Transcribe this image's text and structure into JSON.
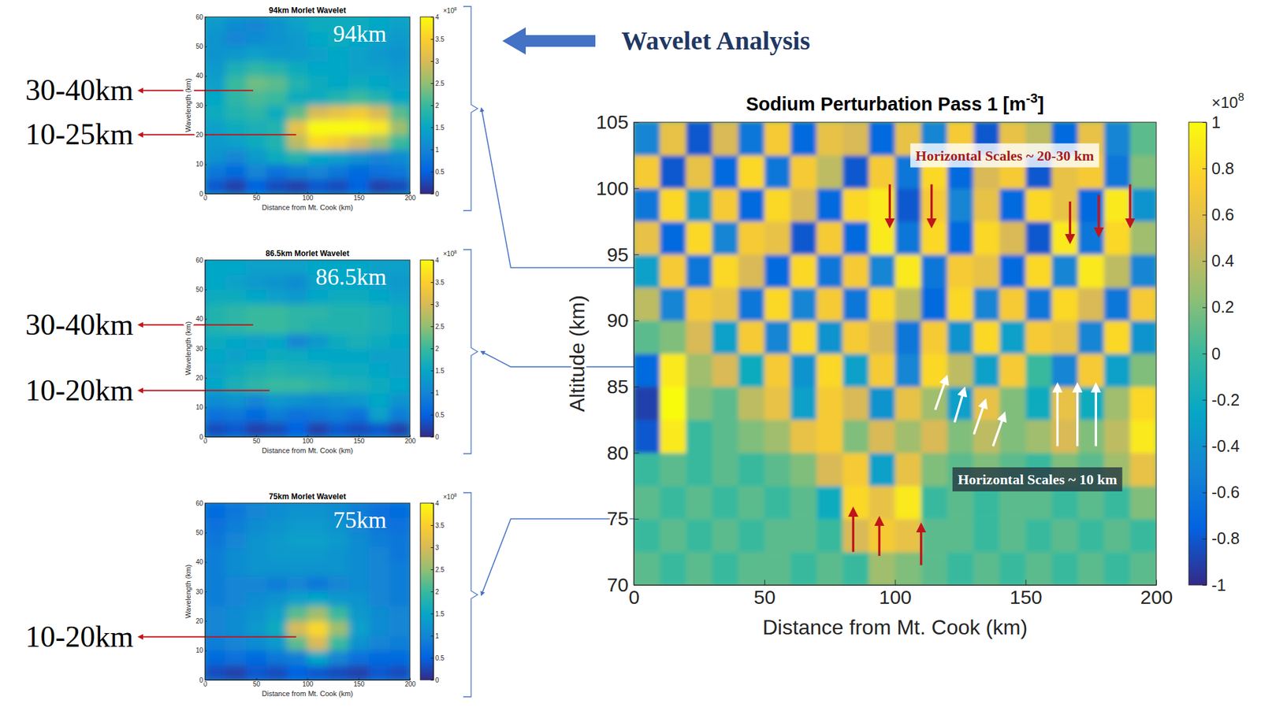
{
  "figure": {
    "heading": "Wavelet Analysis"
  },
  "chart_data": [
    {
      "type": "heatmap",
      "title": "94km Morlet Wavelet",
      "panel_label": "94km",
      "altitude": 94,
      "xlabel": "Distance from Mt. Cook (km)",
      "ylabel": "Wavelength (km)",
      "xlim": [
        0,
        200
      ],
      "ylim": [
        0,
        60
      ],
      "xticks": [
        0,
        50,
        100,
        150,
        200
      ],
      "yticks": [
        0,
        10,
        20,
        30,
        40,
        50,
        60
      ],
      "x": [
        10,
        30,
        50,
        70,
        90,
        110,
        130,
        150,
        170,
        190
      ],
      "y": [
        2.5,
        7.5,
        12.5,
        17.5,
        22.5,
        27.5,
        32.5,
        37.5,
        42.5,
        47.5,
        52.5,
        57.5
      ],
      "values": [
        [
          0.4,
          0.2,
          0.5,
          0.3,
          0.2,
          0.4,
          0.3,
          0.5,
          0.2,
          0.3
        ],
        [
          0.8,
          0.6,
          1.0,
          0.7,
          0.9,
          1.0,
          0.8,
          0.6,
          0.7,
          0.8
        ],
        [
          1.2,
          1.0,
          1.3,
          1.6,
          1.8,
          1.5,
          1.4,
          1.2,
          1.0,
          1.1
        ],
        [
          1.3,
          1.4,
          1.6,
          1.8,
          2.8,
          3.6,
          3.4,
          3.0,
          2.6,
          2.0
        ],
        [
          1.4,
          1.6,
          1.7,
          1.8,
          3.2,
          4.0,
          4.0,
          4.0,
          3.8,
          2.6
        ],
        [
          1.6,
          1.8,
          1.9,
          1.6,
          2.2,
          3.0,
          3.2,
          3.4,
          3.0,
          2.2
        ],
        [
          1.5,
          1.9,
          2.1,
          2.0,
          1.6,
          1.6,
          1.8,
          2.0,
          1.8,
          1.5
        ],
        [
          1.4,
          2.0,
          2.3,
          2.2,
          1.8,
          1.6,
          1.5,
          1.6,
          1.5,
          1.4
        ],
        [
          1.3,
          1.7,
          1.9,
          1.8,
          1.6,
          1.5,
          1.5,
          1.4,
          1.4,
          1.3
        ],
        [
          1.2,
          1.3,
          1.4,
          1.3,
          1.3,
          1.4,
          1.5,
          1.4,
          1.3,
          1.2
        ],
        [
          1.2,
          1.0,
          1.1,
          1.2,
          1.3,
          1.5,
          1.6,
          1.5,
          1.4,
          1.3
        ],
        [
          1.3,
          1.1,
          1.0,
          1.2,
          1.4,
          1.6,
          1.6,
          1.6,
          1.5,
          1.4
        ]
      ],
      "colorbar": {
        "clim": [
          0,
          4
        ],
        "ticks": [
          0,
          0.5,
          1,
          1.5,
          2,
          2.5,
          3,
          3.5,
          4
        ],
        "label": "×10",
        "exponent": 8
      },
      "annotations": [
        {
          "text": "30-40km",
          "x": 47,
          "y": 35,
          "color": "#c0151b"
        },
        {
          "text": "10-25km",
          "x": 89,
          "y": 20,
          "color": "#c0151b"
        }
      ]
    },
    {
      "type": "heatmap",
      "title": "86.5km Morlet Wavelet",
      "panel_label": "86.5km",
      "altitude": 86.5,
      "xlabel": "Distance from Mt. Cook (km)",
      "ylabel": "Wavelength (km)",
      "xlim": [
        0,
        200
      ],
      "ylim": [
        0,
        60
      ],
      "xticks": [
        0,
        50,
        100,
        150,
        200
      ],
      "yticks": [
        0,
        10,
        20,
        30,
        40,
        50,
        60
      ],
      "x": [
        10,
        30,
        50,
        70,
        90,
        110,
        130,
        150,
        170,
        190
      ],
      "y": [
        2.5,
        7.5,
        12.5,
        17.5,
        22.5,
        27.5,
        32.5,
        37.5,
        42.5,
        47.5,
        52.5,
        57.5
      ],
      "values": [
        [
          0.3,
          0.4,
          0.2,
          0.3,
          0.5,
          0.2,
          0.4,
          0.3,
          0.4,
          0.2
        ],
        [
          0.7,
          0.8,
          0.6,
          0.9,
          0.7,
          0.8,
          0.9,
          0.7,
          1.4,
          0.9
        ],
        [
          1.1,
          1.2,
          1.0,
          1.3,
          1.2,
          1.1,
          1.2,
          1.3,
          1.5,
          1.2
        ],
        [
          1.5,
          1.7,
          1.9,
          2.0,
          2.0,
          1.9,
          1.8,
          1.7,
          1.6,
          1.5
        ],
        [
          1.4,
          1.6,
          1.7,
          1.8,
          1.7,
          1.7,
          1.6,
          1.6,
          1.5,
          1.4
        ],
        [
          1.5,
          1.4,
          1.5,
          1.6,
          1.6,
          1.5,
          1.5,
          1.5,
          1.4,
          1.4
        ],
        [
          1.6,
          1.5,
          1.4,
          1.5,
          1.0,
          1.3,
          1.6,
          1.7,
          1.6,
          1.5
        ],
        [
          1.8,
          1.9,
          2.0,
          2.0,
          1.9,
          1.8,
          1.8,
          1.8,
          1.7,
          1.6
        ],
        [
          1.8,
          1.9,
          2.0,
          2.0,
          1.9,
          1.9,
          1.8,
          1.8,
          1.7,
          1.6
        ],
        [
          1.6,
          1.6,
          1.5,
          1.4,
          1.3,
          1.5,
          1.6,
          1.6,
          1.5,
          1.4
        ],
        [
          1.5,
          1.4,
          1.3,
          1.2,
          1.1,
          1.4,
          1.5,
          1.5,
          1.4,
          1.3
        ],
        [
          1.5,
          1.5,
          1.4,
          1.4,
          1.4,
          1.5,
          1.5,
          1.5,
          1.4,
          1.4
        ]
      ],
      "colorbar": {
        "clim": [
          0,
          4
        ],
        "ticks": [
          0,
          0.5,
          1,
          1.5,
          2,
          2.5,
          3,
          3.5,
          4
        ],
        "label": "×10",
        "exponent": 8
      },
      "annotations": [
        {
          "text": "30-40km",
          "x": 47,
          "y": 38,
          "color": "#c0151b"
        },
        {
          "text": "10-20km",
          "x": 63,
          "y": 15.7,
          "color": "#c0151b"
        }
      ]
    },
    {
      "type": "heatmap",
      "title": "75km Morlet Wavelet",
      "panel_label": "75km",
      "altitude": 75,
      "xlabel": "Distance from Mt. Cook (km)",
      "ylabel": "Wavelength (km)",
      "xlim": [
        0,
        200
      ],
      "ylim": [
        0,
        60
      ],
      "xticks": [
        0,
        50,
        100,
        150,
        200
      ],
      "yticks": [
        0,
        10,
        20,
        30,
        40,
        50,
        60
      ],
      "x": [
        10,
        30,
        50,
        70,
        90,
        110,
        130,
        150,
        170,
        190
      ],
      "y": [
        2.5,
        7.5,
        12.5,
        17.5,
        22.5,
        27.5,
        32.5,
        37.5,
        42.5,
        47.5,
        52.5,
        57.5
      ],
      "values": [
        [
          0.3,
          0.2,
          0.4,
          0.3,
          0.5,
          0.4,
          0.3,
          0.2,
          0.4,
          0.3
        ],
        [
          0.6,
          0.7,
          0.6,
          0.8,
          0.9,
          1.5,
          1.0,
          0.7,
          0.6,
          0.6
        ],
        [
          0.9,
          1.0,
          1.1,
          1.3,
          2.2,
          3.0,
          2.0,
          1.2,
          1.0,
          0.9
        ],
        [
          1.0,
          1.1,
          1.3,
          1.6,
          3.0,
          3.6,
          2.6,
          1.4,
          1.1,
          1.0
        ],
        [
          1.0,
          1.1,
          1.2,
          1.4,
          2.2,
          2.6,
          2.0,
          1.3,
          1.1,
          1.0
        ],
        [
          0.9,
          1.0,
          1.1,
          1.2,
          1.4,
          1.5,
          1.3,
          1.2,
          1.0,
          0.9
        ],
        [
          0.9,
          1.0,
          1.0,
          0.9,
          1.0,
          0.8,
          1.0,
          1.1,
          1.0,
          0.9
        ],
        [
          0.9,
          1.1,
          1.2,
          1.2,
          1.2,
          1.2,
          1.2,
          1.1,
          1.0,
          0.9
        ],
        [
          0.9,
          1.1,
          1.2,
          1.3,
          1.3,
          1.3,
          1.2,
          1.1,
          1.0,
          0.8
        ],
        [
          0.8,
          1.0,
          1.2,
          1.3,
          1.4,
          1.4,
          1.3,
          1.1,
          0.9,
          0.8
        ],
        [
          0.7,
          0.9,
          1.1,
          1.2,
          1.3,
          1.3,
          1.2,
          1.0,
          0.8,
          0.7
        ],
        [
          0.6,
          0.8,
          1.0,
          1.1,
          1.2,
          1.2,
          1.1,
          0.9,
          0.7,
          0.6
        ]
      ],
      "colorbar": {
        "clim": [
          0,
          4
        ],
        "ticks": [
          0,
          0.5,
          1,
          1.5,
          2,
          2.5,
          3,
          3.5,
          4
        ],
        "label": "×10",
        "exponent": 8
      },
      "annotations": [
        {
          "text": "10-20km",
          "x": 89,
          "y": 14.6,
          "color": "#c0151b"
        }
      ]
    },
    {
      "type": "heatmap",
      "title": {
        "text": "Sodium Perturbation Pass 1 [m",
        "superscript": "-3",
        "suffix": "]"
      },
      "xlabel": "Distance from Mt. Cook (km)",
      "ylabel": "Altitude (km)",
      "xlim": [
        0,
        200
      ],
      "ylim": [
        70,
        105
      ],
      "xticks": [
        0,
        50,
        100,
        150,
        200
      ],
      "yticks": [
        70,
        75,
        80,
        85,
        90,
        95,
        100,
        105
      ],
      "x": [
        5,
        15,
        25,
        35,
        45,
        55,
        65,
        75,
        85,
        95,
        105,
        115,
        125,
        135,
        145,
        155,
        165,
        175,
        185,
        195
      ],
      "y": [
        71.25,
        73.75,
        76.25,
        78.75,
        81.25,
        83.75,
        86.25,
        88.75,
        91.25,
        93.75,
        96.25,
        98.75,
        101.25,
        103.75
      ],
      "values": [
        [
          0.1,
          0,
          0.1,
          0,
          0.1,
          0.1,
          0,
          0.1,
          0,
          0.3,
          0.2,
          0.1,
          0,
          0.1,
          0,
          0.1,
          0,
          0.1,
          0,
          0.1
        ],
        [
          0,
          0.1,
          0,
          0.1,
          0,
          0.1,
          0.1,
          0,
          0.5,
          0.7,
          0.6,
          0.1,
          0.1,
          0,
          0.1,
          0,
          0.1,
          0,
          0.1,
          0
        ],
        [
          0.1,
          0,
          0.1,
          0,
          0.1,
          0,
          0.1,
          -0.2,
          0.8,
          0.6,
          0.9,
          0,
          0.1,
          0,
          0.1,
          0.1,
          0,
          0.1,
          0,
          0.2
        ],
        [
          0,
          0.1,
          0,
          0.1,
          0,
          0.1,
          0.2,
          0.5,
          0.7,
          -0.3,
          0.6,
          0.2,
          0.1,
          0.2,
          0.1,
          0,
          0.2,
          0.1,
          0.3,
          0.6
        ],
        [
          -0.8,
          0.9,
          0,
          0.1,
          0.2,
          0.3,
          0.6,
          0.7,
          0.2,
          0.5,
          0.3,
          0.5,
          0.2,
          0.4,
          0.2,
          0.3,
          0.5,
          0.2,
          0.4,
          0.9
        ],
        [
          -0.9,
          1,
          0.2,
          0.1,
          0.4,
          0.6,
          -0.3,
          0.7,
          0.5,
          -0.4,
          0.6,
          0.3,
          -0.3,
          0.6,
          0.2,
          -0.2,
          0.6,
          -0.2,
          0.3,
          0.8
        ],
        [
          -0.7,
          0.9,
          0.3,
          0.5,
          -0.2,
          0.7,
          -0.4,
          0.8,
          -0.3,
          0.7,
          -0.5,
          0.8,
          0.4,
          -0.3,
          0.7,
          0,
          -0.5,
          0.7,
          -0.3,
          0.2
        ],
        [
          0.1,
          0.2,
          0.5,
          -0.3,
          0.7,
          -0.5,
          0.8,
          -0.4,
          0.7,
          0.5,
          -0.6,
          0.7,
          -0.4,
          0.8,
          -0.3,
          0.7,
          0.6,
          -0.5,
          0.8,
          -0.4
        ],
        [
          0.4,
          -0.5,
          0.7,
          0.6,
          -0.6,
          0.8,
          -0.5,
          0.7,
          -0.6,
          0.8,
          0.4,
          -0.7,
          0.8,
          -0.5,
          0.7,
          -0.6,
          0.8,
          0.5,
          -0.6,
          0.7
        ],
        [
          -0.3,
          0.7,
          -0.6,
          0.8,
          0.5,
          -0.7,
          0.8,
          -0.6,
          0.7,
          -0.5,
          0.9,
          -0.6,
          0.7,
          0.6,
          -0.7,
          0.8,
          -0.5,
          0.9,
          0.4,
          -0.5
        ],
        [
          0.6,
          -0.7,
          0.8,
          -0.5,
          0.7,
          0.6,
          -0.8,
          0.7,
          -0.7,
          0.9,
          -0.6,
          0.8,
          -0.7,
          0.8,
          0.5,
          -0.8,
          0.9,
          -0.6,
          0.8,
          0.3
        ],
        [
          -0.6,
          0.8,
          -0.4,
          0.7,
          -0.7,
          0.8,
          0.5,
          -0.7,
          0.8,
          0.9,
          -0.8,
          0.7,
          -0.5,
          0.6,
          -0.7,
          0.8,
          0.6,
          -0.7,
          0.9,
          -0.4
        ],
        [
          0.7,
          -0.8,
          0.6,
          -0.7,
          0.8,
          -0.6,
          0.7,
          0.4,
          -0.8,
          0.7,
          -0.6,
          0.8,
          -0.7,
          0.5,
          0.7,
          -0.8,
          0.6,
          0.7,
          -0.6,
          0.2
        ],
        [
          -0.5,
          0.6,
          -0.8,
          0.5,
          -0.6,
          0.7,
          -0.7,
          0.6,
          0.5,
          -0.7,
          0.6,
          -0.5,
          0.7,
          -0.8,
          0.6,
          0.4,
          -0.7,
          0.6,
          -0.5,
          0.1
        ]
      ],
      "colorbar": {
        "clim": [
          -1,
          1
        ],
        "ticks": [
          -1,
          -0.8,
          -0.6,
          -0.4,
          -0.2,
          0,
          0.2,
          0.4,
          0.6,
          0.8,
          1
        ],
        "label": "×10",
        "exponent": 8
      },
      "annotations": [
        {
          "text": "Horizontal Scales ~ 20-30 km",
          "x": 142,
          "y": 102.5,
          "color": "#a51d1d"
        },
        {
          "text": "Horizontal Scales ~ 10 km",
          "x": 154.5,
          "y": 78,
          "color": "#ffffff"
        }
      ],
      "arrows": [
        {
          "x": [
            98,
            98
          ],
          "y": [
            100.3,
            97.2
          ],
          "color": "#c0151b"
        },
        {
          "x": [
            114,
            114
          ],
          "y": [
            100.3,
            97.2
          ],
          "color": "#c0151b"
        },
        {
          "x": [
            167,
            167
          ],
          "y": [
            99,
            96
          ],
          "color": "#c0151b"
        },
        {
          "x": [
            178,
            178
          ],
          "y": [
            99.5,
            96.5
          ],
          "color": "#c0151b"
        },
        {
          "x": [
            190,
            190
          ],
          "y": [
            100.3,
            97.2
          ],
          "color": "#c0151b"
        },
        {
          "x": [
            84,
            84
          ],
          "y": [
            72.5,
            75.7
          ],
          "color": "#c0151b"
        },
        {
          "x": [
            94,
            94
          ],
          "y": [
            72.2,
            75
          ],
          "color": "#c0151b"
        },
        {
          "x": [
            110,
            110
          ],
          "y": [
            71.5,
            74.5
          ],
          "color": "#c0151b"
        },
        {
          "x": [
            115.4,
            119.7
          ],
          "y": [
            83.25,
            85.7
          ],
          "color": "#ffffff"
        },
        {
          "x": [
            122.8,
            126.5
          ],
          "y": [
            82.3,
            84.8
          ],
          "color": "#ffffff"
        },
        {
          "x": [
            130.2,
            134.5
          ],
          "y": [
            81.4,
            83.9
          ],
          "color": "#ffffff"
        },
        {
          "x": [
            137.5,
            141.8
          ],
          "y": [
            80.5,
            82.9
          ],
          "color": "#ffffff"
        },
        {
          "x": [
            162.2,
            162.2
          ],
          "y": [
            80.5,
            85.1
          ],
          "color": "#ffffff"
        },
        {
          "x": [
            169.8,
            169.8
          ],
          "y": [
            80.5,
            85.1
          ],
          "color": "#ffffff"
        },
        {
          "x": [
            176.9,
            176.9
          ],
          "y": [
            80.5,
            85.1
          ],
          "color": "#ffffff"
        }
      ]
    }
  ]
}
